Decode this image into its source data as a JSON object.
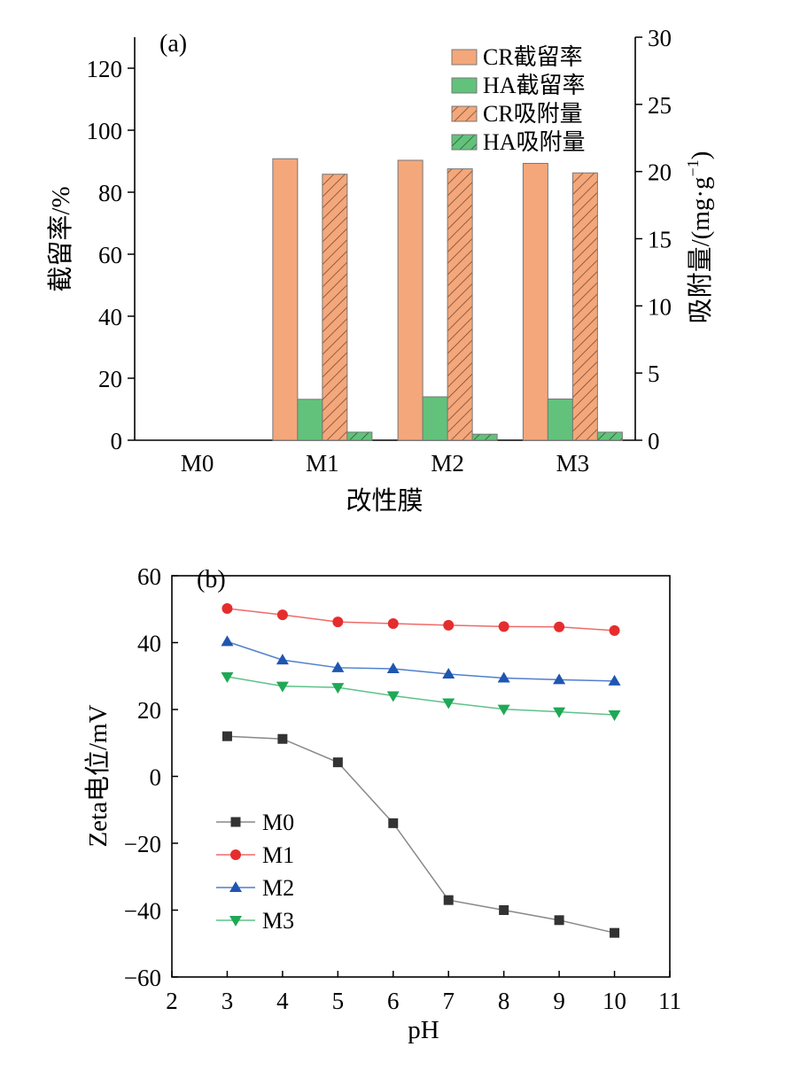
{
  "chart_data": [
    {
      "type": "bar",
      "panel_label": "(a)",
      "xlabel": "改性膜",
      "ylabel_left": "截留率/%",
      "ylabel_right_main": "吸附量/(mg·g",
      "ylabel_right_sup": "−1",
      "ylabel_right_close": ")",
      "categories": [
        "M0",
        "M1",
        "M2",
        "M3"
      ],
      "ylim_left": [
        0,
        130
      ],
      "yticks_left": [
        "0",
        "20",
        "40",
        "60",
        "80",
        "100",
        "120"
      ],
      "ylim_right": [
        0,
        30
      ],
      "yticks_right": [
        "0",
        "5",
        "10",
        "15",
        "20",
        "25",
        "30"
      ],
      "legend_position": "top-right",
      "series": [
        {
          "name": "CR截留率",
          "axis": "left",
          "hatched": false,
          "color": "#f4a77a",
          "values": [
            0,
            90.8,
            90.3,
            89.3
          ]
        },
        {
          "name": "HA截留率",
          "axis": "left",
          "hatched": false,
          "color": "#62c27b",
          "values": [
            0,
            13.2,
            14.0,
            13.3
          ]
        },
        {
          "name": "CR吸附量",
          "axis": "right",
          "hatched": true,
          "color": "#f4a77a",
          "values": [
            0,
            19.8,
            20.2,
            19.9
          ]
        },
        {
          "name": "HA吸附量",
          "axis": "right",
          "hatched": true,
          "color": "#62c27b",
          "values": [
            0,
            0.6,
            0.45,
            0.6
          ]
        }
      ]
    },
    {
      "type": "line",
      "panel_label": "(b)",
      "xlabel": "pH",
      "ylabel": "Zeta电位/mV",
      "xlim": [
        2,
        11
      ],
      "xticks": [
        "2",
        "3",
        "4",
        "5",
        "6",
        "7",
        "8",
        "9",
        "10",
        "11"
      ],
      "ylim": [
        -60,
        60
      ],
      "yticks": [
        "−60",
        "−40",
        "−20",
        "0",
        "20",
        "40",
        "60"
      ],
      "legend_position": "bottom-left",
      "x": [
        3,
        4,
        5,
        6,
        7,
        8,
        9,
        10
      ],
      "series": [
        {
          "name": "M0",
          "marker": "square",
          "color": "#888888",
          "marker_color": "#333333",
          "values": [
            12,
            11.2,
            4.2,
            -14,
            -37,
            -40,
            -43,
            -46.8
          ]
        },
        {
          "name": "M1",
          "marker": "circle",
          "color": "#ef6a6a",
          "marker_color": "#e52d2d",
          "values": [
            50.2,
            48.3,
            46.2,
            45.7,
            45.2,
            44.8,
            44.7,
            43.6
          ]
        },
        {
          "name": "M2",
          "marker": "triangle-up",
          "color": "#4f7fcc",
          "marker_color": "#1f56b0",
          "values": [
            40.3,
            34.8,
            32.5,
            32.2,
            30.6,
            29.4,
            28.9,
            28.5
          ]
        },
        {
          "name": "M3",
          "marker": "triangle-down",
          "color": "#5ec28a",
          "marker_color": "#1fa856",
          "values": [
            29.8,
            27.0,
            26.6,
            24.1,
            22.0,
            20.1,
            19.3,
            18.4
          ]
        }
      ]
    }
  ]
}
